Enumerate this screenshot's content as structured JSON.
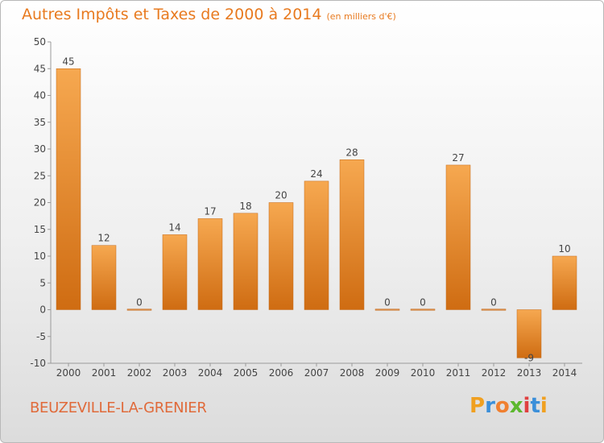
{
  "title": {
    "main": "Autres Impôts et Taxes de 2000 à 2014",
    "unit": "(en milliers d'€)"
  },
  "commune": "BEUZEVILLE-LA-GRENIER",
  "logo": {
    "letters": [
      "P",
      "r",
      "o",
      "x",
      "i",
      "t",
      "i"
    ],
    "colors": [
      "#f0a020",
      "#3b8fd9",
      "#f08030",
      "#5cb82e",
      "#e04040",
      "#3b8fd9",
      "#f0a020"
    ]
  },
  "chart_data": {
    "type": "bar",
    "categories": [
      "2000",
      "2001",
      "2002",
      "2003",
      "2004",
      "2005",
      "2006",
      "2007",
      "2008",
      "2009",
      "2010",
      "2011",
      "2012",
      "2013",
      "2014"
    ],
    "values": [
      45,
      12,
      0,
      14,
      17,
      18,
      20,
      24,
      28,
      0,
      0,
      27,
      0,
      -9,
      10
    ],
    "data_labels": [
      "45",
      "12",
      "0",
      "14",
      "17",
      "18",
      "20",
      "24",
      "28",
      "0",
      "0",
      "27",
      "0",
      "-9",
      "10"
    ],
    "ylim": [
      -10,
      50
    ],
    "yticks": [
      -10,
      -5,
      0,
      5,
      10,
      15,
      20,
      25,
      30,
      35,
      40,
      45,
      50
    ],
    "grid": false,
    "bar_color": "#f08c2a"
  }
}
